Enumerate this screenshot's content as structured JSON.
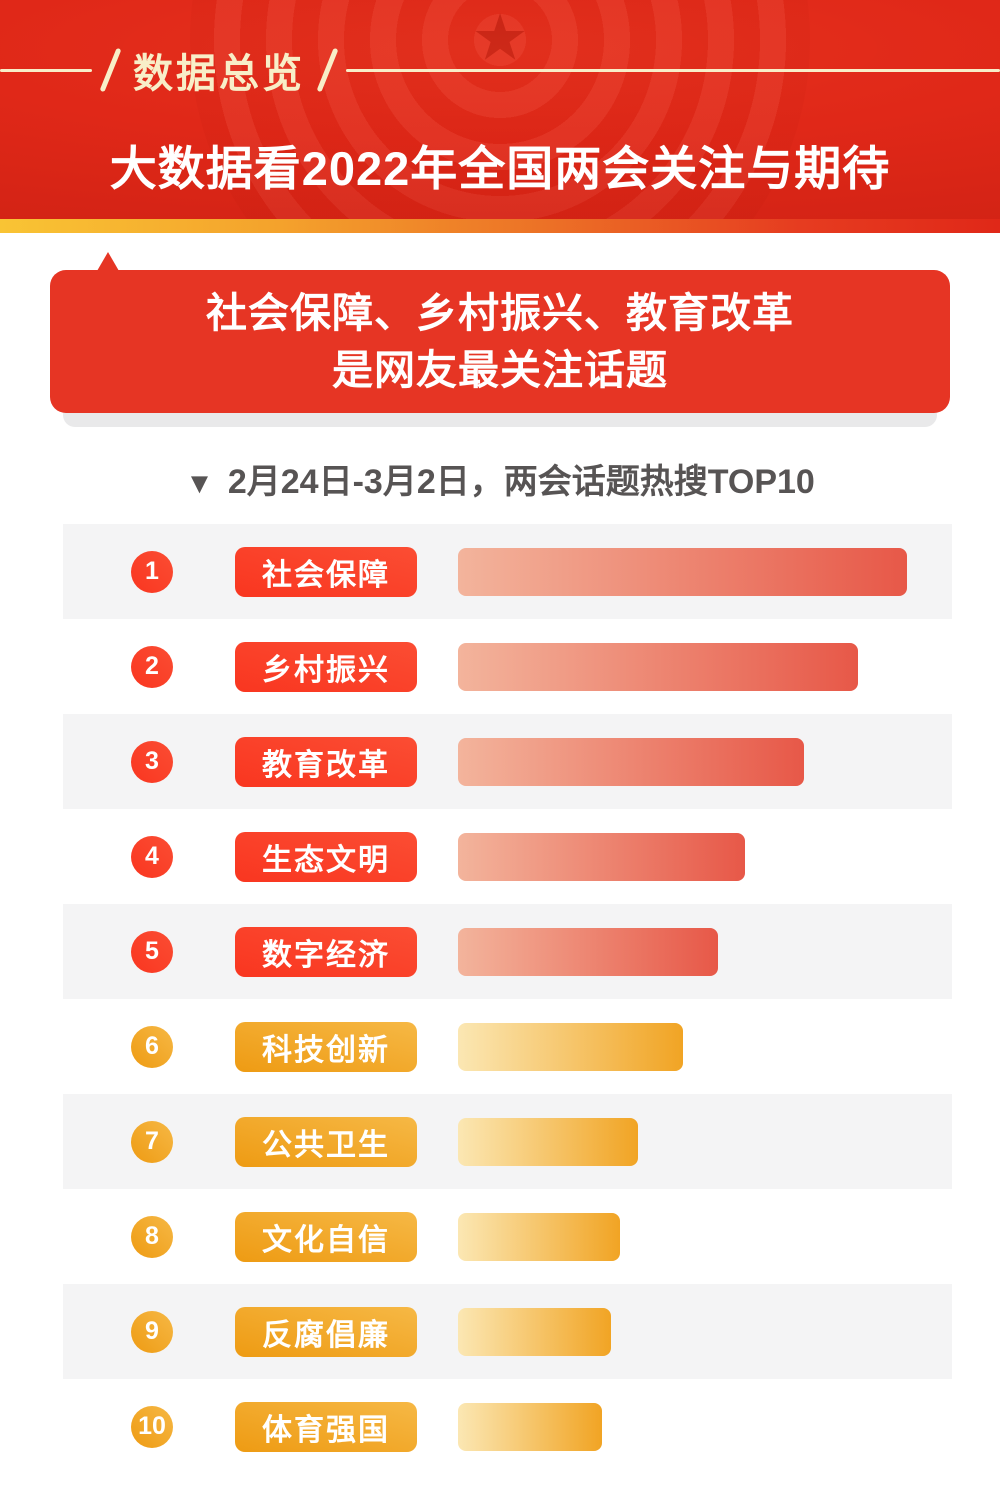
{
  "header": {
    "tag": "数据总览",
    "title": "大数据看2022年全国两会关注与期待"
  },
  "highlight_card": {
    "line1": "社会保障、乡村振兴、教育改革",
    "line2": "是网友最关注话题"
  },
  "section": {
    "marker": "▼",
    "subtitle": "2月24日-3月2日，两会话题热搜TOP10"
  },
  "icons": {
    "star": "★"
  },
  "chart_data": {
    "type": "bar",
    "orientation": "horizontal",
    "title": "2月24日-3月2日，两会话题热搜TOP10",
    "xlim": [
      0,
      100
    ],
    "grid": false,
    "legend": false,
    "items": [
      {
        "rank": 1,
        "label": "社会保障",
        "value": 100,
        "group": "red"
      },
      {
        "rank": 2,
        "label": "乡村振兴",
        "value": 89,
        "group": "red"
      },
      {
        "rank": 3,
        "label": "教育改革",
        "value": 77,
        "group": "red"
      },
      {
        "rank": 4,
        "label": "生态文明",
        "value": 64,
        "group": "red"
      },
      {
        "rank": 5,
        "label": "数字经济",
        "value": 58,
        "group": "red"
      },
      {
        "rank": 6,
        "label": "科技创新",
        "value": 50,
        "group": "gold"
      },
      {
        "rank": 7,
        "label": "公共卫生",
        "value": 40,
        "group": "gold"
      },
      {
        "rank": 8,
        "label": "文化自信",
        "value": 36,
        "group": "gold"
      },
      {
        "rank": 9,
        "label": "反腐倡廉",
        "value": 34,
        "group": "gold"
      },
      {
        "rank": 10,
        "label": "体育强国",
        "value": 32,
        "group": "gold"
      }
    ]
  },
  "colors": {
    "header_bg": "#E02818",
    "tag_text": "#F8EEC8",
    "title_text": "#FFFFFF",
    "accent_strip_gradient": [
      "#F9C434",
      "#EC7026",
      "#E02818"
    ],
    "card_bg": "#E63524",
    "card_text": "#FFFFFF",
    "subtitle_text": "#575454",
    "row_alt_bg": "#F4F4F5",
    "rank_red": "#FA3B28",
    "rank_gold": "#F2A51D",
    "bar_red_gradient": [
      "#F3B49C",
      "#E75848"
    ],
    "bar_gold_gradient": [
      "#FBE7B3",
      "#F1A424"
    ]
  }
}
